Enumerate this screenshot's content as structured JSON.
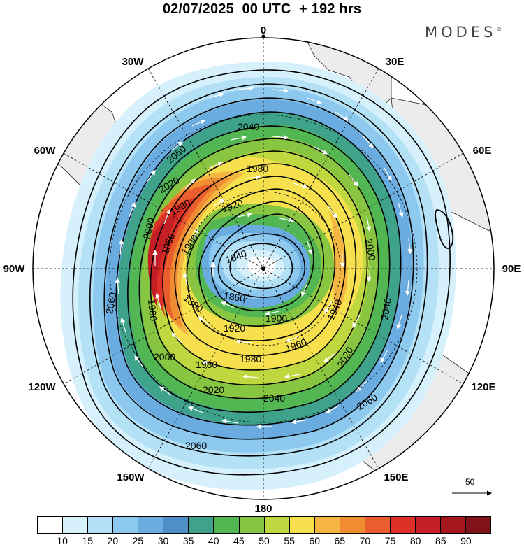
{
  "title": "02/07/2025  00 UTC  + 192 hrs",
  "brand": "MODES",
  "brand_mark": "©",
  "longitude_labels": [
    "0",
    "30E",
    "60E",
    "90E",
    "120E",
    "150E",
    "180",
    "150W",
    "120W",
    "90W",
    "60W",
    "30W"
  ],
  "contour_labels": [
    "1840",
    "1860",
    "1880",
    "1900",
    "1900",
    "1920",
    "1920",
    "1940",
    "1960",
    "1960",
    "1960",
    "1980",
    "1980",
    "1980",
    "1980",
    "2000",
    "2000",
    "2000",
    "2020",
    "2020",
    "2020",
    "2040",
    "2040",
    "2040",
    "2060",
    "2060",
    "2060",
    "2060"
  ],
  "vector_reference": "50",
  "colorbar": {
    "colors": [
      "#ffffff",
      "#d6f0fc",
      "#b5e1f7",
      "#8dc9ee",
      "#6aace0",
      "#4f8fc7",
      "#3fa38c",
      "#52b752",
      "#88c642",
      "#bfd83f",
      "#f6e04e",
      "#f4b542",
      "#f08d33",
      "#ea5d2c",
      "#dd3127",
      "#c41e26",
      "#a4161e",
      "#82121a"
    ],
    "labels": [
      "10",
      "15",
      "20",
      "25",
      "30",
      "35",
      "40",
      "45",
      "50",
      "55",
      "60",
      "65",
      "70",
      "75",
      "80",
      "85",
      "90"
    ]
  }
}
